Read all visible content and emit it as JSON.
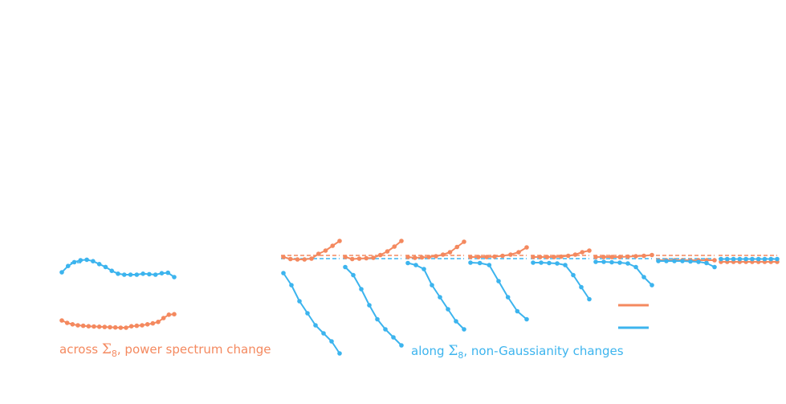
{
  "colors": {
    "orange": "#f4895f",
    "blue": "#3cb4ee"
  },
  "captions": {
    "left": {
      "pre": "across ",
      "sym": "Σ",
      "sub": "8",
      "post": ", power spectrum change"
    },
    "right": {
      "pre": "along ",
      "sym": "Σ",
      "sub": "8",
      "post": ", non-Gaussianity changes"
    }
  },
  "chart_data": [
    {
      "type": "line",
      "panel": "left",
      "series": [
        {
          "color": "blue",
          "values": [
            0.55,
            0.68,
            0.76,
            0.8,
            0.81,
            0.78,
            0.72,
            0.66,
            0.58,
            0.52,
            0.5,
            0.5,
            0.5,
            0.52,
            0.51,
            0.5,
            0.53,
            0.54,
            0.45
          ]
        },
        {
          "color": "orange",
          "values": [
            -0.45,
            -0.5,
            -0.53,
            -0.55,
            -0.56,
            -0.57,
            -0.575,
            -0.58,
            -0.585,
            -0.59,
            -0.595,
            -0.6,
            -0.6,
            -0.57,
            -0.56,
            -0.55,
            -0.53,
            -0.51,
            -0.48,
            -0.4,
            -0.33,
            -0.32
          ]
        }
      ]
    },
    {
      "type": "line",
      "panel": "right",
      "panels": [
        {
          "orange": [
            0.0,
            -0.05,
            -0.06,
            -0.06,
            -0.04,
            0.08,
            0.16,
            0.28,
            0.4
          ],
          "blue": [
            -0.4,
            -0.7,
            -1.1,
            -1.4,
            -1.7,
            -1.9,
            -2.1,
            -2.4
          ]
        },
        {
          "orange": [
            0.0,
            -0.05,
            -0.04,
            -0.03,
            -0.02,
            0.05,
            0.14,
            0.26,
            0.4
          ],
          "blue": [
            -0.25,
            -0.45,
            -0.8,
            -1.2,
            -1.55,
            -1.8,
            -2.0,
            -2.2
          ]
        },
        {
          "orange": [
            0.0,
            -0.02,
            -0.01,
            0.0,
            0.02,
            0.06,
            0.12,
            0.25,
            0.38
          ],
          "blue": [
            -0.15,
            -0.2,
            -0.3,
            -0.7,
            -1.0,
            -1.3,
            -1.6,
            -1.8
          ]
        },
        {
          "orange": [
            0.0,
            0.0,
            0.0,
            0.01,
            0.03,
            0.06,
            0.12,
            0.24
          ],
          "blue": [
            -0.14,
            -0.15,
            -0.2,
            -0.6,
            -1.0,
            -1.35,
            -1.55
          ]
        },
        {
          "orange": [
            0.0,
            0.0,
            0.0,
            0.0,
            0.01,
            0.03,
            0.06,
            0.12,
            0.16
          ],
          "blue": [
            -0.14,
            -0.14,
            -0.15,
            -0.16,
            -0.2,
            -0.45,
            -0.75,
            -1.05
          ]
        },
        {
          "orange": [
            0.0,
            0.0,
            0.0,
            0.0,
            0.01,
            0.02,
            0.03,
            0.05
          ],
          "blue": [
            -0.12,
            -0.12,
            -0.13,
            -0.14,
            -0.16,
            -0.25,
            -0.5,
            -0.7
          ]
        },
        {
          "orange": [
            -0.08,
            -0.08,
            -0.08,
            -0.08,
            -0.08,
            -0.08,
            -0.08,
            -0.08
          ],
          "blue": [
            -0.1,
            -0.1,
            -0.1,
            -0.1,
            -0.11,
            -0.12,
            -0.15,
            -0.25
          ]
        },
        {
          "orange": [
            -0.12,
            -0.12,
            -0.12,
            -0.12,
            -0.12,
            -0.12,
            -0.12,
            -0.12,
            -0.12,
            -0.12
          ],
          "blue": [
            -0.05,
            -0.05,
            -0.05,
            -0.05,
            -0.05,
            -0.05,
            -0.05,
            -0.05,
            -0.05,
            -0.05
          ]
        }
      ]
    }
  ]
}
